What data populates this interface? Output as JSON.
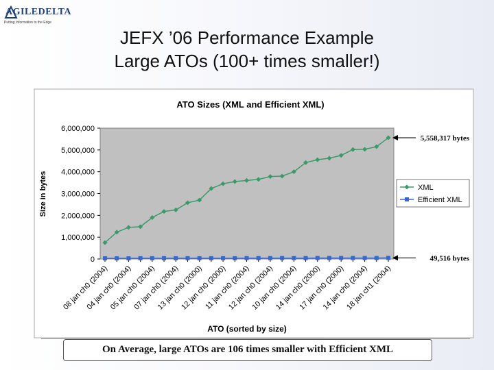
{
  "slide": {
    "title_line1": "JEFX ’06 Performance Example",
    "title_line2": "Large ATOs (100+ times smaller!)",
    "caption": "On Average, large ATOs are 106 times smaller with Efficient XML",
    "logo_text": "AGILEDELTA",
    "logo_tagline": "Putting Information to the Edge"
  },
  "chart_data": {
    "type": "line",
    "title": "ATO Sizes (XML and Efficient XML)",
    "xlabel": "ATO (sorted by size)",
    "ylabel": "Size in bytes",
    "ylim": [
      0,
      6000000
    ],
    "yticks": [
      0,
      1000000,
      2000000,
      3000000,
      4000000,
      5000000,
      6000000
    ],
    "ytick_labels": [
      "0",
      "1,000,000",
      "2,000,000",
      "3,000,000",
      "4,000,000",
      "5,000,000",
      "6,000,000"
    ],
    "xtick_labels": [
      "08 jan ch0 (2004)",
      "04 jan ch0 (2004)",
      "05 jan ch0 (2004)",
      "07 jan ch0 (2004)",
      "13 jan ch0 (2000)",
      "12 jan ch0 (2000)",
      "11 jan ch0 (2004)",
      "12 jan ch0 (2004)",
      "10 jan ch0 (2004)",
      "14 jan ch0 (2000)",
      "17 jan ch0 (2000)",
      "14 jan ch0 (2004)",
      "18 jan ch1 (2004)"
    ],
    "point_count": 25,
    "legend_position": "right",
    "grid": false,
    "series": [
      {
        "name": "XML",
        "color": "#3a9a6a",
        "values": [
          750000,
          1230000,
          1450000,
          1480000,
          1900000,
          2180000,
          2250000,
          2580000,
          2700000,
          3230000,
          3450000,
          3550000,
          3600000,
          3650000,
          3780000,
          3800000,
          4000000,
          4420000,
          4550000,
          4620000,
          4750000,
          5020000,
          5030000,
          5150000,
          5558317
        ]
      },
      {
        "name": "Efficient XML",
        "color": "#3b67c8",
        "values": [
          30000,
          30000,
          30000,
          35000,
          35000,
          35000,
          35000,
          35000,
          35000,
          35000,
          35000,
          35000,
          40000,
          40000,
          40000,
          40000,
          40000,
          40000,
          45000,
          45000,
          45000,
          45000,
          45000,
          45000,
          49516
        ]
      }
    ],
    "annotations": [
      {
        "text": "5,558,317 bytes",
        "series": "XML",
        "index": 24
      },
      {
        "text": "49,516 bytes",
        "series": "Efficient XML",
        "index": 24
      }
    ]
  }
}
